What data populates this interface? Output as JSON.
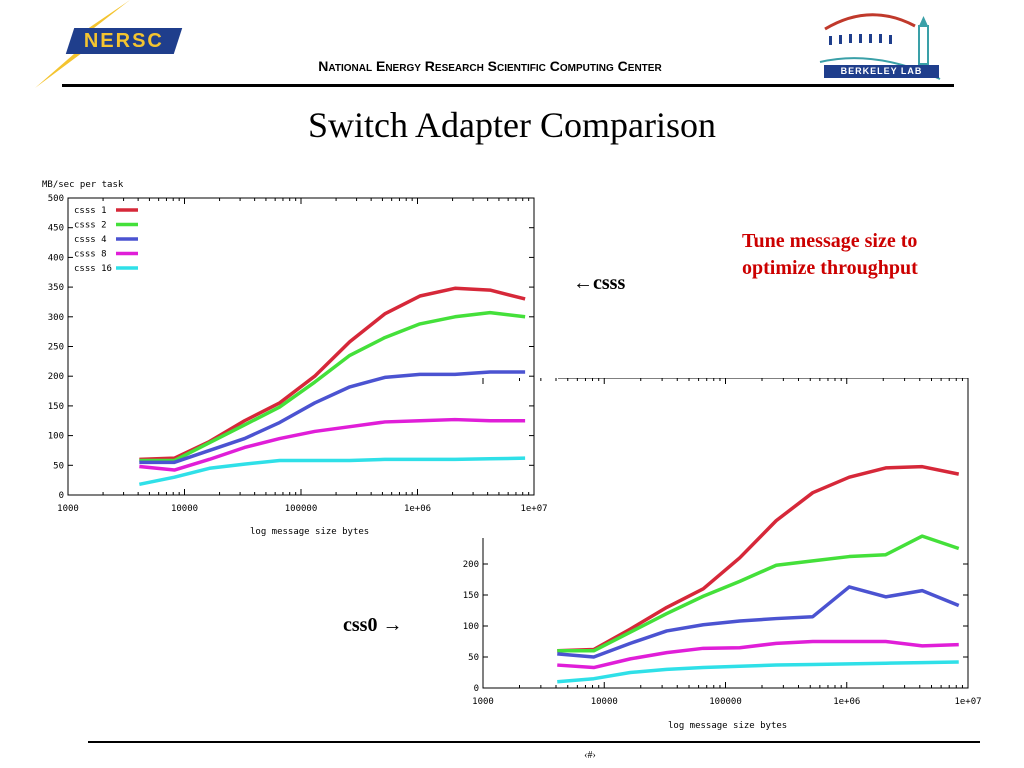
{
  "header": {
    "org_logo_text": "NERSC",
    "center_name": "National Energy Research Scientific Computing Center",
    "lab_logo_text": "BERKELEY LAB"
  },
  "slide": {
    "title": "Switch Adapter Comparison",
    "note": "Tune message size to optimize throughput",
    "label_top": "←csss",
    "label_bottom": "css0 →",
    "page_marker": "‹#›"
  },
  "colors": {
    "note_text": "#cc0000",
    "nersc_blue": "#1f3e8c",
    "nersc_gold": "#f4c430"
  },
  "chart_data": [
    {
      "type": "line",
      "name": "csss",
      "ylabel": "MB/sec per task",
      "xlabel": "log message size bytes",
      "xscale": "log",
      "xlim": [
        1000,
        10000000
      ],
      "ylim": [
        0,
        500
      ],
      "x_ticks": [
        "1000",
        "10000",
        "100000",
        "1e+06",
        "1e+07"
      ],
      "y_ticks": [
        "0",
        "50",
        "100",
        "150",
        "200",
        "250",
        "300",
        "350",
        "400",
        "450",
        "500"
      ],
      "legend": "top-left",
      "grid": false,
      "x": [
        4096,
        8192,
        16384,
        32768,
        65536,
        131072,
        262144,
        524288,
        1048576,
        2097152,
        4194304,
        8388608
      ],
      "series": [
        {
          "name": "csss  1",
          "color": "#d62839",
          "values": [
            60,
            62,
            90,
            125,
            155,
            200,
            258,
            305,
            335,
            348,
            345,
            330
          ]
        },
        {
          "name": "csss  2",
          "color": "#44e03a",
          "values": [
            58,
            58,
            88,
            118,
            148,
            190,
            235,
            265,
            288,
            300,
            307,
            300
          ]
        },
        {
          "name": "csss  4",
          "color": "#4b53d1",
          "values": [
            55,
            55,
            75,
            95,
            122,
            155,
            182,
            198,
            203,
            203,
            207,
            207
          ]
        },
        {
          "name": "csss  8",
          "color": "#e01ed8",
          "values": [
            48,
            42,
            60,
            80,
            95,
            107,
            115,
            123,
            125,
            127,
            125,
            125
          ]
        },
        {
          "name": "csss 16",
          "color": "#2fe0e8",
          "values": [
            18,
            30,
            45,
            52,
            58,
            58,
            58,
            60,
            60,
            60,
            61,
            62
          ]
        }
      ]
    },
    {
      "type": "line",
      "name": "css0",
      "xlabel": "log message size bytes",
      "xscale": "log",
      "xlim": [
        1000,
        10000000
      ],
      "ylim": [
        0,
        500
      ],
      "x_ticks": [
        "1000",
        "10000",
        "100000",
        "1e+06",
        "1e+07"
      ],
      "y_ticks": [
        "0",
        "50",
        "100",
        "150",
        "200"
      ],
      "grid": false,
      "x": [
        4096,
        8192,
        16384,
        32768,
        65536,
        131072,
        262144,
        524288,
        1048576,
        2097152,
        4194304,
        8388608
      ],
      "series": [
        {
          "color": "#d62839",
          "values": [
            60,
            62,
            95,
            130,
            160,
            210,
            270,
            315,
            340,
            355,
            357,
            345
          ]
        },
        {
          "color": "#44e03a",
          "values": [
            60,
            60,
            90,
            120,
            148,
            172,
            198,
            205,
            212,
            215,
            245,
            225
          ]
        },
        {
          "color": "#4b53d1",
          "values": [
            55,
            50,
            72,
            92,
            102,
            108,
            112,
            115,
            163,
            147,
            157,
            133
          ]
        },
        {
          "color": "#e01ed8",
          "values": [
            37,
            33,
            47,
            57,
            64,
            65,
            72,
            75,
            75,
            75,
            68,
            70
          ]
        },
        {
          "color": "#2fe0e8",
          "values": [
            10,
            15,
            25,
            30,
            33,
            35,
            37,
            38,
            39,
            40,
            41,
            42
          ]
        }
      ]
    }
  ]
}
